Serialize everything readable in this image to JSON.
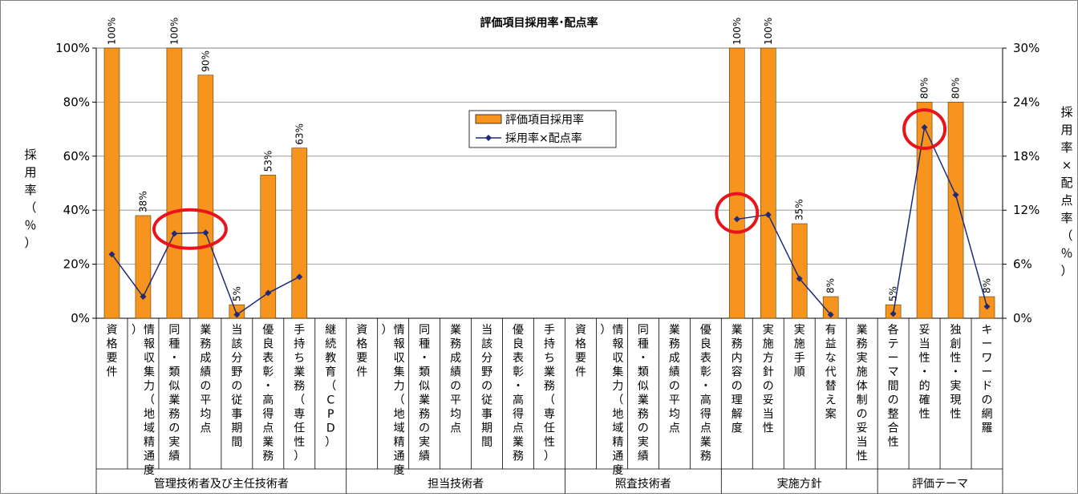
{
  "chart_data": {
    "type": "bar",
    "title": "評価項目採用率･配点率",
    "y_left": {
      "label": "採用率（％）",
      "min": 0,
      "max": 100,
      "ticks": [
        "0%",
        "20%",
        "40%",
        "60%",
        "80%",
        "100%"
      ]
    },
    "y_right": {
      "label": "採用率×配点率（％）",
      "min": 0,
      "max": 30,
      "ticks": [
        "0%",
        "6%",
        "12%",
        "18%",
        "24%",
        "30%"
      ]
    },
    "legend": {
      "position": "center",
      "bar_label": "評価項目採用率",
      "line_label": "採用率×配点率"
    },
    "categories": [
      "資格要件",
      "情報収集力（地域精通度）",
      "同種・類似業務の実績",
      "業務成績の平均点",
      "当該分野の従事期間",
      "優良表彰・高得点業務",
      "手持ち業務（専任性）",
      "継続教育（CPD）",
      "資格要件",
      "情報収集力（地域精通度）",
      "同種・類似業務の実績",
      "業務成績の平均点",
      "当該分野の従事期間",
      "優良表彰・高得点業務",
      "手持ち業務（専任性）",
      "資格要件",
      "情報収集力（地域精通度）",
      "同種・類似業務の実績",
      "業務成績の平均点",
      "優良表彰・高得点業務",
      "業務内容の理解度",
      "実施方針の妥当性",
      "実施手順",
      "有益な代替え案",
      "業務実施体制の妥当性",
      "各テーマ間の整合性",
      "妥当性・的確性",
      "独創性・実現性",
      "キーワードの網羅"
    ],
    "groups": [
      {
        "label": "管理技術者及び主任技術者",
        "count": 8
      },
      {
        "label": "担当技術者",
        "count": 7
      },
      {
        "label": "照査技術者",
        "count": 5
      },
      {
        "label": "実施方針",
        "count": 5
      },
      {
        "label": "評価テーマ",
        "count": 4
      }
    ],
    "series": [
      {
        "name": "評価項目採用率",
        "type": "bar",
        "axis": "left",
        "color": "#f7941d",
        "values": [
          100,
          38,
          100,
          90,
          5,
          53,
          63,
          null,
          null,
          null,
          null,
          null,
          null,
          null,
          null,
          null,
          null,
          null,
          null,
          null,
          100,
          100,
          35,
          8,
          null,
          5,
          80,
          80,
          8
        ],
        "data_labels": [
          "100%",
          "38%",
          "100%",
          "90%",
          "5%",
          "53%",
          "63%",
          "",
          "",
          "",
          "",
          "",
          "",
          "",
          "",
          "",
          "",
          "",
          "",
          "",
          "100%",
          "100%",
          "35%",
          "8%",
          "",
          "5%",
          "80%",
          "80%",
          "8%"
        ]
      },
      {
        "name": "採用率×配点率",
        "type": "line",
        "axis": "right",
        "color": "#1f2a7a",
        "values": [
          7.1,
          2.4,
          9.4,
          9.5,
          0.4,
          2.8,
          4.6,
          null,
          null,
          null,
          null,
          null,
          null,
          null,
          null,
          null,
          null,
          null,
          null,
          null,
          11.0,
          11.5,
          4.4,
          0.4,
          null,
          0.5,
          21.2,
          13.7,
          1.3
        ]
      }
    ],
    "highlight_color": "#e8141b",
    "highlights": [
      {
        "categories": [
          2,
          3
        ],
        "level": 33
      },
      {
        "categories": [
          20
        ],
        "level": 39
      },
      {
        "categories": [
          26
        ],
        "level": 70
      }
    ]
  }
}
